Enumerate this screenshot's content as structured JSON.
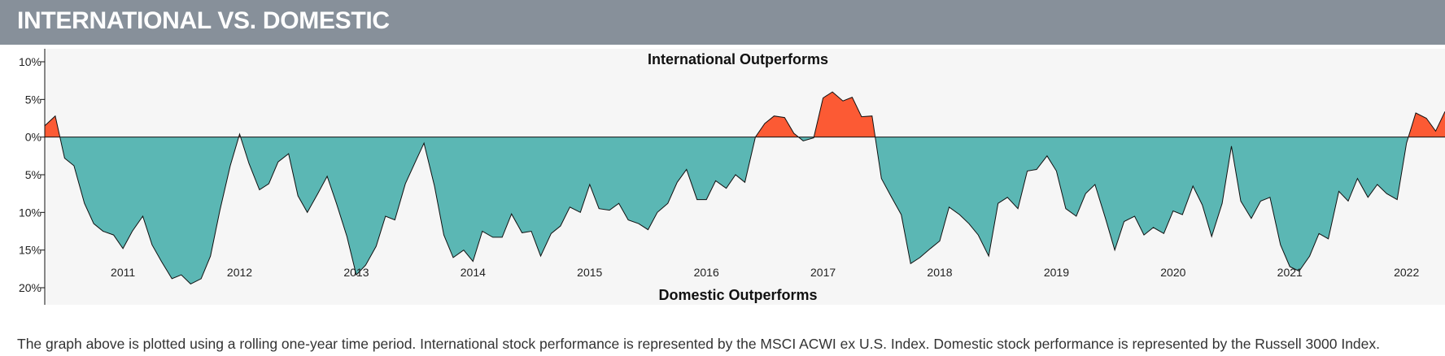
{
  "header": {
    "title": "INTERNATIONAL VS. DOMESTIC"
  },
  "caption": "The graph above is plotted using a rolling one-year time period. International stock performance is represented by the MSCI ACWI ex U.S. Index. Domestic stock performance is represented by the Russell 3000 Index.",
  "colors": {
    "positive": "#fc5a34",
    "negative": "#5bb7b4",
    "banner": "#87909a",
    "plot_bg": "#f6f6f6"
  },
  "chart_data": {
    "type": "area",
    "title": "",
    "xlabel": "",
    "ylabel": "",
    "annotations": {
      "top": "International Outperforms",
      "bottom": "Domestic Outperforms"
    },
    "y_axis": {
      "min": -20,
      "max": 10,
      "ticks": [
        10,
        5,
        0,
        -5,
        -10,
        -15,
        -20
      ],
      "tick_labels": [
        "10%",
        "5%",
        "0%",
        "5%",
        "10%",
        "15%",
        "20%"
      ],
      "display": "absolute percent; values below 0% mean domestic outperformed"
    },
    "x_axis": {
      "min": 2010.33,
      "max": 2022.33,
      "ticks": [
        2011,
        2012,
        2013,
        2014,
        2015,
        2016,
        2017,
        2018,
        2019,
        2020,
        2021,
        2022
      ],
      "tick_labels": [
        "2011",
        "2012",
        "2013",
        "2014",
        "2015",
        "2016",
        "2017",
        "2018",
        "2019",
        "2020",
        "2021",
        "2022"
      ]
    },
    "grid": false,
    "series": [
      {
        "x": [
          2010.33,
          2010.42,
          2010.5,
          2010.58,
          2010.67,
          2010.75,
          2010.83,
          2010.92,
          2011.0,
          2011.08,
          2011.17,
          2011.25,
          2011.33,
          2011.42,
          2011.5,
          2011.58,
          2011.67,
          2011.75,
          2011.83,
          2011.92,
          2012.0,
          2012.08,
          2012.17,
          2012.25,
          2012.33,
          2012.42,
          2012.5,
          2012.58,
          2012.67,
          2012.75,
          2012.83,
          2012.92,
          2013.0,
          2013.08,
          2013.17,
          2013.25,
          2013.33,
          2013.42,
          2013.5,
          2013.58,
          2013.67,
          2013.75,
          2013.83,
          2013.92,
          2014.0,
          2014.08,
          2014.17,
          2014.25,
          2014.33,
          2014.42,
          2014.5,
          2014.58,
          2014.67,
          2014.75,
          2014.83,
          2014.92,
          2015.0,
          2015.08,
          2015.17,
          2015.25,
          2015.33,
          2015.42,
          2015.5,
          2015.58,
          2015.67,
          2015.75,
          2015.83,
          2015.92,
          2016.0,
          2016.08,
          2016.17,
          2016.25,
          2016.33,
          2016.42,
          2016.5,
          2016.58,
          2016.67,
          2016.75,
          2016.83,
          2016.92,
          2017.0,
          2017.08,
          2017.17,
          2017.25,
          2017.33,
          2017.42,
          2017.5,
          2017.58,
          2017.67,
          2017.75,
          2017.83,
          2017.92,
          2018.0,
          2018.08,
          2018.17,
          2018.25,
          2018.33,
          2018.42,
          2018.5,
          2018.58,
          2018.67,
          2018.75,
          2018.83,
          2018.92,
          2019.0,
          2019.08,
          2019.17,
          2019.25,
          2019.33,
          2019.42,
          2019.5,
          2019.58,
          2019.67,
          2019.75,
          2019.83,
          2019.92,
          2020.0,
          2020.08,
          2020.17,
          2020.25,
          2020.33,
          2020.42,
          2020.5,
          2020.58,
          2020.67,
          2020.75,
          2020.83,
          2020.92,
          2021.0,
          2021.08,
          2021.17,
          2021.25,
          2021.33,
          2021.42,
          2021.5,
          2021.58,
          2021.67,
          2021.75,
          2021.83,
          2021.92,
          2022.0,
          2022.08,
          2022.17,
          2022.25,
          2022.33
        ],
        "y": [
          1.5,
          2.8,
          -2.8,
          -3.8,
          -8.8,
          -11.5,
          -12.5,
          -13.0,
          -14.8,
          -12.5,
          -10.5,
          -14.3,
          -16.5,
          -18.8,
          -18.3,
          -19.5,
          -18.8,
          -15.8,
          -9.8,
          -3.8,
          0.4,
          -3.5,
          -7.0,
          -6.2,
          -3.3,
          -2.2,
          -7.8,
          -10.0,
          -7.5,
          -5.2,
          -8.8,
          -13.2,
          -18.3,
          -17.0,
          -14.5,
          -10.5,
          -11.0,
          -6.2,
          -3.5,
          -0.8,
          -6.5,
          -13.0,
          -16.0,
          -15.0,
          -16.5,
          -12.5,
          -13.3,
          -13.3,
          -10.2,
          -12.7,
          -12.5,
          -15.8,
          -12.8,
          -11.8,
          -9.3,
          -10.0,
          -6.3,
          -9.5,
          -9.7,
          -8.8,
          -11.0,
          -11.5,
          -12.3,
          -10.0,
          -8.8,
          -6.0,
          -4.3,
          -8.3,
          -8.3,
          -5.8,
          -6.8,
          -5.0,
          -6.0,
          0.0,
          1.8,
          2.8,
          2.6,
          0.5,
          -0.5,
          -0.1,
          5.2,
          6.0,
          4.8,
          5.3,
          2.7,
          2.8,
          -5.5,
          -7.8,
          -10.3,
          -16.8,
          -16.0,
          -14.8,
          -13.8,
          -9.3,
          -10.3,
          -11.5,
          -13.0,
          -15.8,
          -8.8,
          -8.0,
          -9.5,
          -4.5,
          -4.3,
          -2.5,
          -4.5,
          -9.5,
          -10.5,
          -7.5,
          -6.3,
          -10.8,
          -15.0,
          -11.2,
          -10.5,
          -13.0,
          -12.0,
          -12.8,
          -9.8,
          -10.3,
          -6.5,
          -9.0,
          -13.2,
          -8.8,
          -1.2,
          -8.5,
          -10.8,
          -8.5,
          -8.0,
          -14.3,
          -17.2,
          -17.8,
          -15.8,
          -12.8,
          -13.5,
          -7.2,
          -8.5,
          -5.5,
          -8.0,
          -6.3,
          -7.5,
          -8.3,
          -0.8,
          3.2,
          2.5,
          0.8,
          3.4
        ]
      }
    ]
  }
}
